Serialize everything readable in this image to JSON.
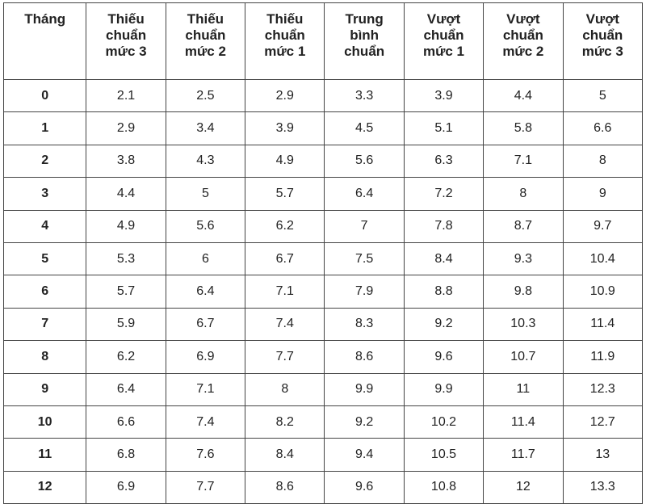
{
  "headers": [
    "Tháng",
    "Thiếu chuẩn mức 3",
    "Thiếu chuẩn mức 2",
    "Thiếu chuẩn mức 1",
    "Trung bình chuẩn",
    "Vượt chuẩn mức 1",
    "Vượt chuẩn mức 2",
    "Vượt chuẩn mức 3"
  ],
  "rows": [
    [
      "0",
      "2.1",
      "2.5",
      "2.9",
      "3.3",
      "3.9",
      "4.4",
      "5"
    ],
    [
      "1",
      "2.9",
      "3.4",
      "3.9",
      "4.5",
      "5.1",
      "5.8",
      "6.6"
    ],
    [
      "2",
      "3.8",
      "4.3",
      "4.9",
      "5.6",
      "6.3",
      "7.1",
      "8"
    ],
    [
      "3",
      "4.4",
      "5",
      "5.7",
      "6.4",
      "7.2",
      "8",
      "9"
    ],
    [
      "4",
      "4.9",
      "5.6",
      "6.2",
      "7",
      "7.8",
      "8.7",
      "9.7"
    ],
    [
      "5",
      "5.3",
      "6",
      "6.7",
      "7.5",
      "8.4",
      "9.3",
      "10.4"
    ],
    [
      "6",
      "5.7",
      "6.4",
      "7.1",
      "7.9",
      "8.8",
      "9.8",
      "10.9"
    ],
    [
      "7",
      "5.9",
      "6.7",
      "7.4",
      "8.3",
      "9.2",
      "10.3",
      "11.4"
    ],
    [
      "8",
      "6.2",
      "6.9",
      "7.7",
      "8.6",
      "9.6",
      "10.7",
      "11.9"
    ],
    [
      "9",
      "6.4",
      "7.1",
      "8",
      "9.9",
      "9.9",
      "11",
      "12.3"
    ],
    [
      "10",
      "6.6",
      "7.4",
      "8.2",
      "9.2",
      "10.2",
      "11.4",
      "12.7"
    ],
    [
      "11",
      "6.8",
      "7.6",
      "8.4",
      "9.4",
      "10.5",
      "11.7",
      "13"
    ],
    [
      "12",
      "6.9",
      "7.7",
      "8.6",
      "9.6",
      "10.8",
      "12",
      "13.3"
    ]
  ]
}
